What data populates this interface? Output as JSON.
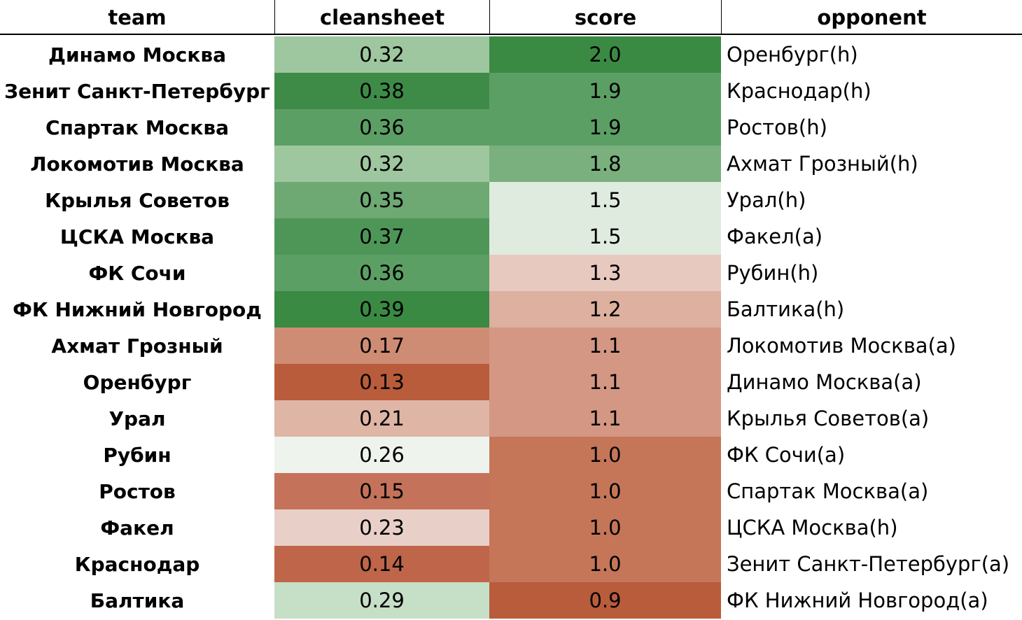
{
  "chart_data": {
    "type": "table",
    "columns": [
      "team",
      "cleansheet",
      "score",
      "opponent"
    ],
    "rows": [
      {
        "team": "Динамо Москва",
        "cleansheet": "0.32",
        "score": "2.0",
        "opponent": "Оренбург(h)",
        "cleansheet_color": "#9ec79f",
        "score_color": "#3a8a44"
      },
      {
        "team": "Зенит Санкт-Петербург",
        "cleansheet": "0.38",
        "score": "1.9",
        "opponent": "Краснодар(h)",
        "cleansheet_color": "#3e8b48",
        "score_color": "#5c9f65"
      },
      {
        "team": "Спартак Москва",
        "cleansheet": "0.36",
        "score": "1.9",
        "opponent": "Ростов(h)",
        "cleansheet_color": "#5c9f65",
        "score_color": "#5c9f65"
      },
      {
        "team": "Локомотив Москва",
        "cleansheet": "0.32",
        "score": "1.8",
        "opponent": "Ахмат Грозный(h)",
        "cleansheet_color": "#9ec79f",
        "score_color": "#7ab07e"
      },
      {
        "team": "Крылья Советов",
        "cleansheet": "0.35",
        "score": "1.5",
        "opponent": "Урал(h)",
        "cleansheet_color": "#6ea873",
        "score_color": "#dfebdf"
      },
      {
        "team": "ЦСКА Москва",
        "cleansheet": "0.37",
        "score": "1.5",
        "opponent": "Факел(a)",
        "cleansheet_color": "#4e9658",
        "score_color": "#dfebdf"
      },
      {
        "team": "ФК Сочи",
        "cleansheet": "0.36",
        "score": "1.3",
        "opponent": "Рубин(h)",
        "cleansheet_color": "#5c9f65",
        "score_color": "#e8c9bf"
      },
      {
        "team": "ФК Нижний Новгород",
        "cleansheet": "0.39",
        "score": "1.2",
        "opponent": "Балтика(h)",
        "cleansheet_color": "#3a8a44",
        "score_color": "#ddb09f"
      },
      {
        "team": "Ахмат Грозный",
        "cleansheet": "0.17",
        "score": "1.1",
        "opponent": "Локомотив Москва(a)",
        "cleansheet_color": "#cf8c74",
        "score_color": "#d49784"
      },
      {
        "team": "Оренбург",
        "cleansheet": "0.13",
        "score": "1.1",
        "opponent": "Динамо Москва(a)",
        "cleansheet_color": "#b95c3b",
        "score_color": "#d49784"
      },
      {
        "team": "Урал",
        "cleansheet": "0.21",
        "score": "1.1",
        "opponent": "Крылья Советов(a)",
        "cleansheet_color": "#dfb5a6",
        "score_color": "#d49784"
      },
      {
        "team": "Рубин",
        "cleansheet": "0.26",
        "score": "1.0",
        "opponent": "ФК Сочи(a)",
        "cleansheet_color": "#eef3ee",
        "score_color": "#c57659"
      },
      {
        "team": "Ростов",
        "cleansheet": "0.15",
        "score": "1.0",
        "opponent": "Спартак Москва(a)",
        "cleansheet_color": "#c4725a",
        "score_color": "#c57659"
      },
      {
        "team": "Факел",
        "cleansheet": "0.23",
        "score": "1.0",
        "opponent": "ЦСКА Москва(h)",
        "cleansheet_color": "#e8d0c8",
        "score_color": "#c57659"
      },
      {
        "team": "Краснодар",
        "cleansheet": "0.14",
        "score": "1.0",
        "opponent": "Зенит Санкт-Петербург(a)",
        "cleansheet_color": "#be654a",
        "score_color": "#c57659"
      },
      {
        "team": "Балтика",
        "cleansheet": "0.29",
        "score": "0.9",
        "opponent": "ФК Нижний Новгород(a)",
        "cleansheet_color": "#c6dfc7",
        "score_color": "#b95c3b"
      }
    ]
  }
}
